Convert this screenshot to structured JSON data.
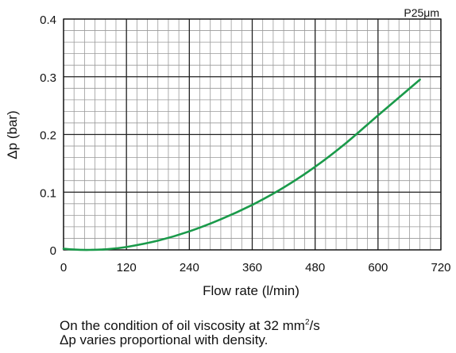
{
  "chart_data": {
    "type": "line",
    "title": "",
    "legend_label": "P25μm",
    "xlabel": "Flow rate  (l/min)",
    "ylabel": "Δp (bar)",
    "xlim": [
      0,
      720
    ],
    "ylim": [
      0,
      0.4
    ],
    "x_ticks": [
      "0",
      "120",
      "240",
      "360",
      "480",
      "600",
      "720"
    ],
    "y_ticks": [
      "0",
      "0.1",
      "0.2",
      "0.3",
      "0.4"
    ],
    "grid": true,
    "grid_minor_x_step": 20,
    "grid_minor_y_step": 0.02,
    "series": [
      {
        "name": "P25μm",
        "color": "#1a9a4a",
        "points": [
          [
            0,
            0.002
          ],
          [
            20,
            0.0005
          ],
          [
            50,
            0.0
          ],
          [
            80,
            0.001
          ],
          [
            120,
            0.005
          ],
          [
            180,
            0.016
          ],
          [
            240,
            0.032
          ],
          [
            300,
            0.053
          ],
          [
            360,
            0.078
          ],
          [
            420,
            0.108
          ],
          [
            480,
            0.144
          ],
          [
            540,
            0.186
          ],
          [
            600,
            0.233
          ],
          [
            680,
            0.295
          ]
        ]
      }
    ]
  },
  "note": {
    "line1_prefix": "On the condition of oil viscosity at 32 mm",
    "line1_sup": "2",
    "line1_suffix": "/s",
    "line2": "Δp varies proportional with density."
  }
}
